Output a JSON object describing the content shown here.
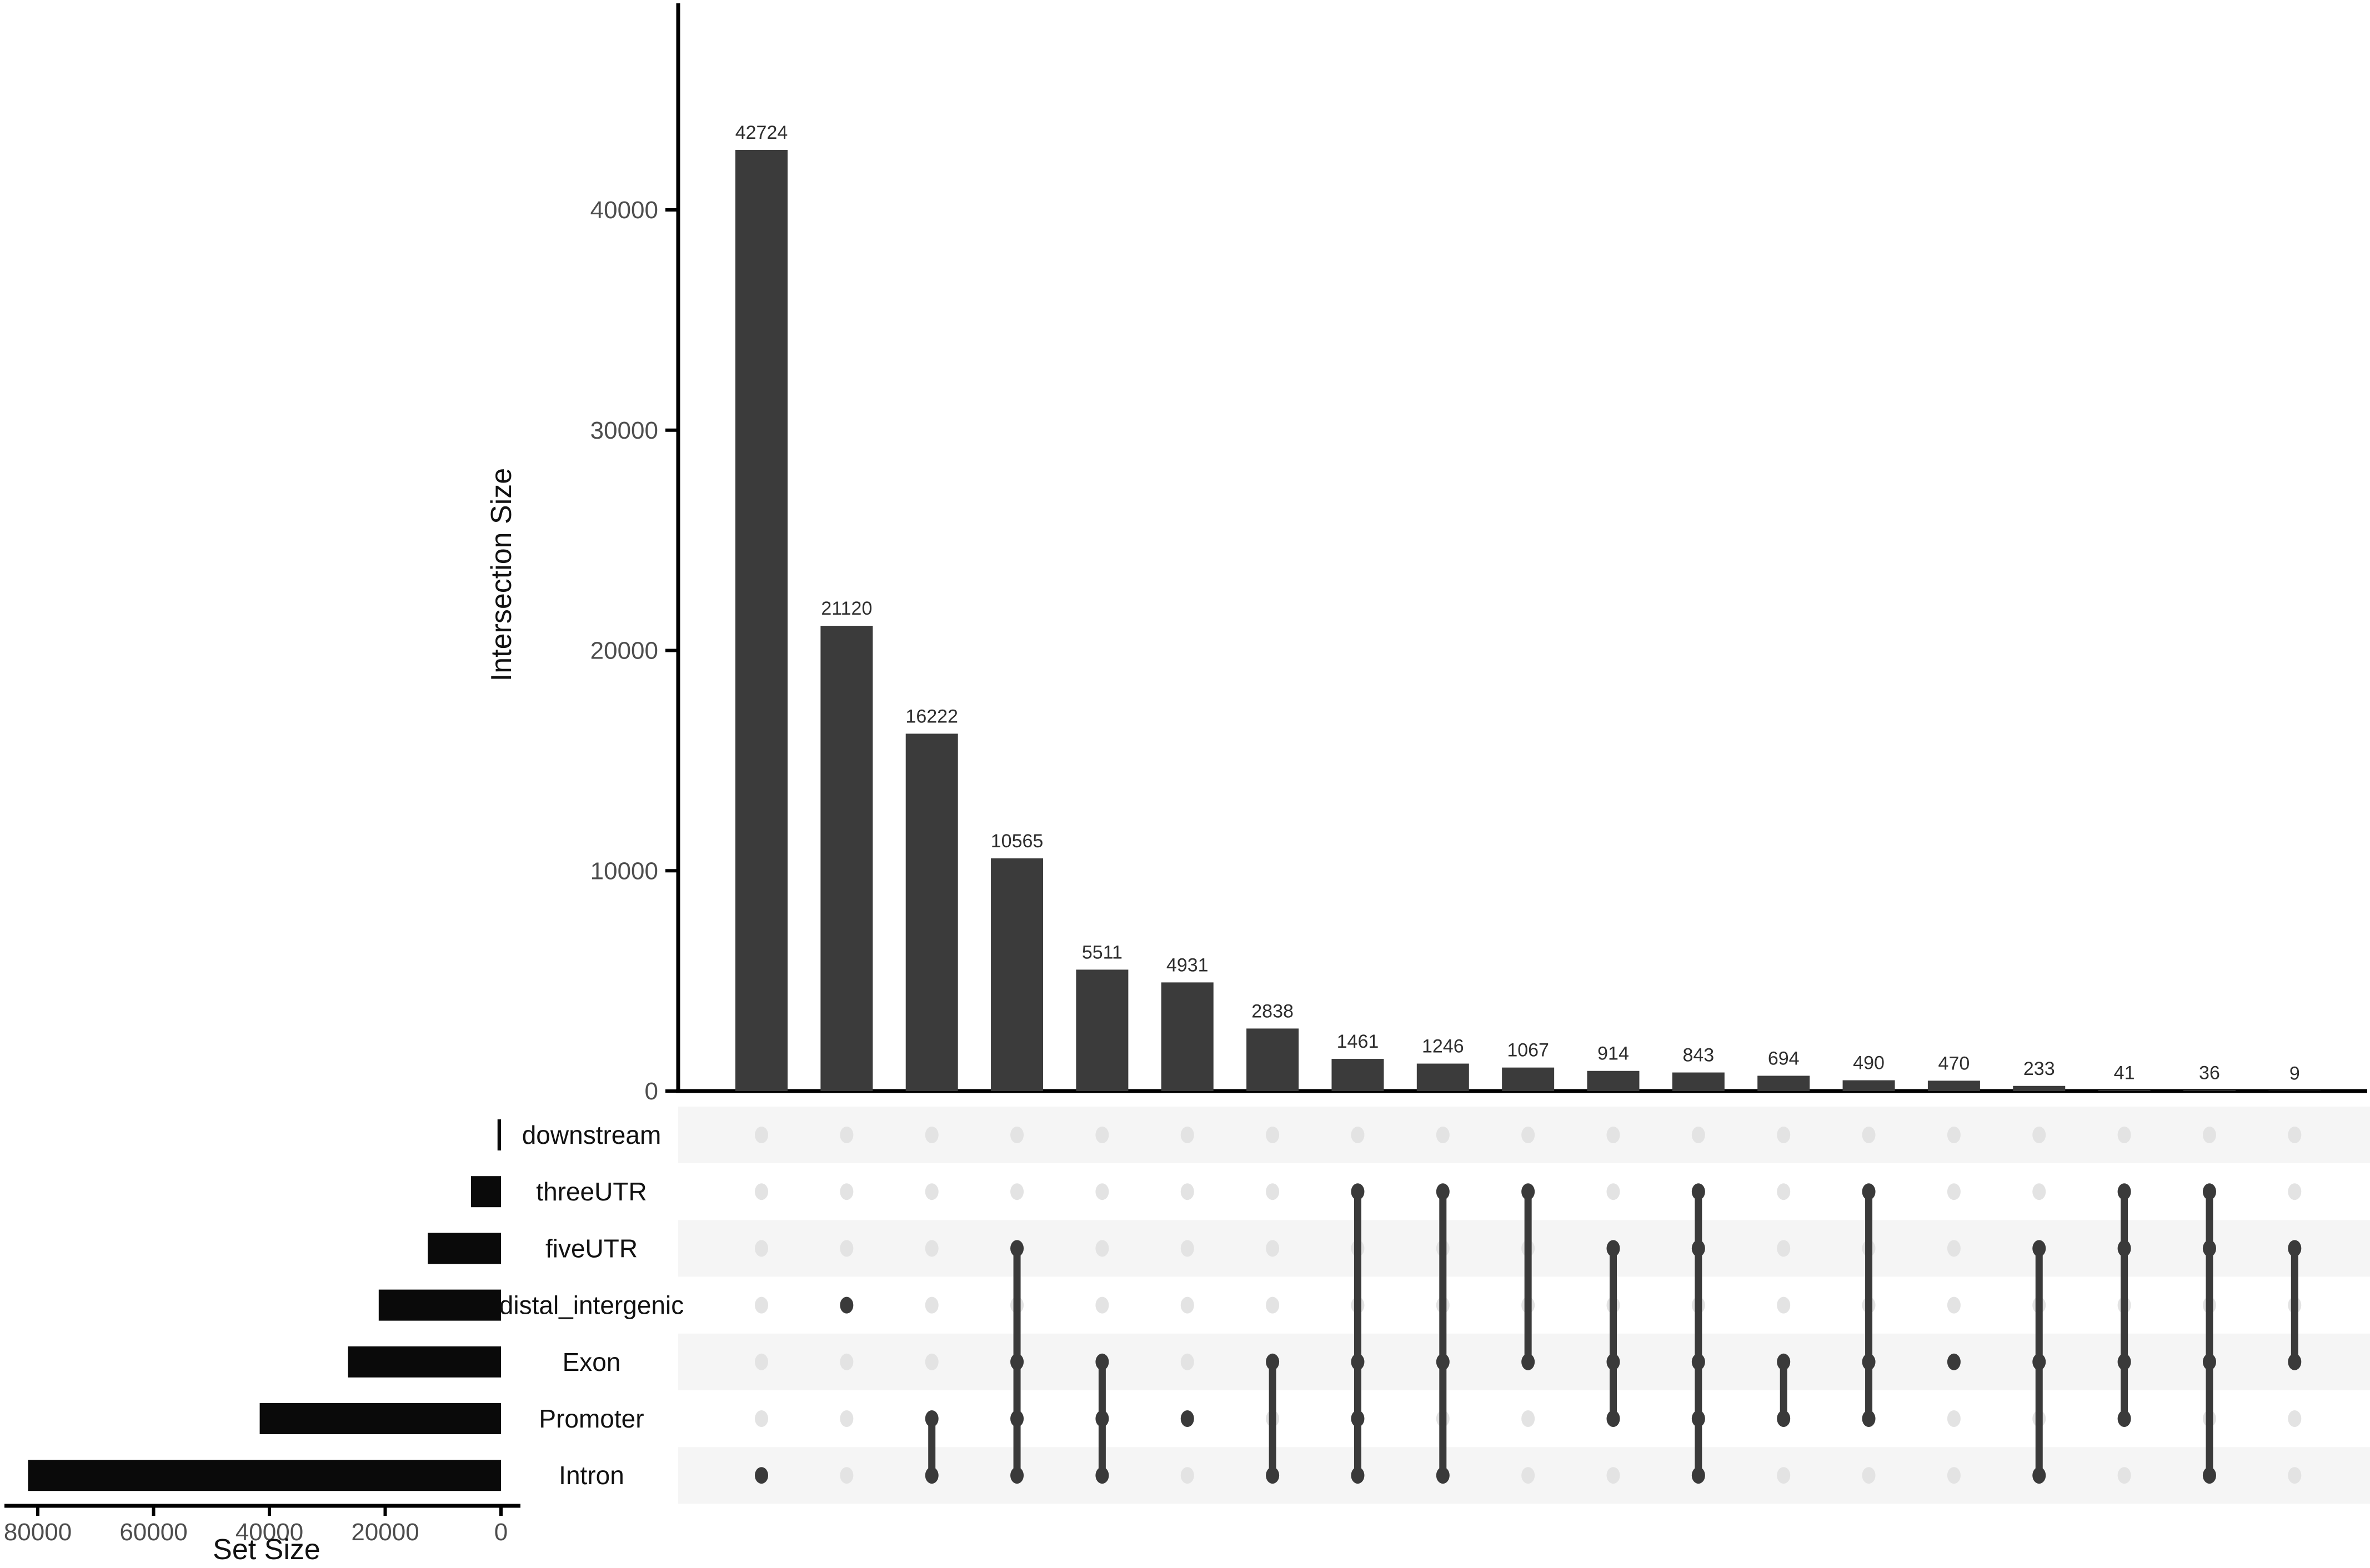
{
  "colors": {
    "main_bar": "#3b3b3b",
    "set_bar": "#0a0a0a",
    "dot_active": "#3a3a3a",
    "dot_inactive": "#e3e3e3",
    "connector": "#3a3a3a",
    "stripe": "#f5f5f5",
    "axis_line": "#000000",
    "axis_tick_text": "#4d4d4d",
    "value_label_text": "#2e2e2e",
    "label_text": "#111111"
  },
  "chart_data": {
    "type": "upset",
    "intersection_axis": {
      "label": "Intersection Size",
      "ticks": [
        0,
        10000,
        20000,
        30000,
        40000
      ],
      "max": 43000,
      "grid": false
    },
    "set_axis": {
      "label": "Set Size",
      "ticks": [
        80000,
        60000,
        40000,
        20000,
        0
      ],
      "max": 80000,
      "grid": false
    },
    "sets": [
      {
        "name": "downstream",
        "size": 600
      },
      {
        "name": "threeUTR",
        "size": 5184
      },
      {
        "name": "fiveUTR",
        "size": 12641
      },
      {
        "name": "distal_intergenic",
        "size": 21120
      },
      {
        "name": "Exon",
        "size": 26418
      },
      {
        "name": "Promoter",
        "size": 41672
      },
      {
        "name": "Intron",
        "size": 81679
      }
    ],
    "intersections": [
      {
        "size": 42724,
        "sets": [
          "Intron"
        ]
      },
      {
        "size": 21120,
        "sets": [
          "distal_intergenic"
        ]
      },
      {
        "size": 16222,
        "sets": [
          "Promoter",
          "Intron"
        ]
      },
      {
        "size": 10565,
        "sets": [
          "fiveUTR",
          "Exon",
          "Promoter",
          "Intron"
        ]
      },
      {
        "size": 5511,
        "sets": [
          "Exon",
          "Promoter",
          "Intron"
        ]
      },
      {
        "size": 4931,
        "sets": [
          "Promoter"
        ]
      },
      {
        "size": 2838,
        "sets": [
          "Exon",
          "Intron"
        ]
      },
      {
        "size": 1461,
        "sets": [
          "threeUTR",
          "Exon",
          "Promoter",
          "Intron"
        ]
      },
      {
        "size": 1246,
        "sets": [
          "threeUTR",
          "Exon",
          "Intron"
        ]
      },
      {
        "size": 1067,
        "sets": [
          "threeUTR",
          "Exon"
        ]
      },
      {
        "size": 914,
        "sets": [
          "fiveUTR",
          "Exon",
          "Promoter"
        ]
      },
      {
        "size": 843,
        "sets": [
          "threeUTR",
          "fiveUTR",
          "Exon",
          "Promoter",
          "Intron"
        ]
      },
      {
        "size": 694,
        "sets": [
          "Exon",
          "Promoter"
        ]
      },
      {
        "size": 490,
        "sets": [
          "threeUTR",
          "Exon",
          "Promoter"
        ]
      },
      {
        "size": 470,
        "sets": [
          "Exon"
        ]
      },
      {
        "size": 233,
        "sets": [
          "fiveUTR",
          "Exon",
          "Intron"
        ]
      },
      {
        "size": 41,
        "sets": [
          "threeUTR",
          "fiveUTR",
          "Exon",
          "Promoter"
        ]
      },
      {
        "size": 36,
        "sets": [
          "threeUTR",
          "fiveUTR",
          "Exon",
          "Intron"
        ]
      },
      {
        "size": 9,
        "sets": [
          "fiveUTR",
          "Exon"
        ]
      }
    ]
  }
}
